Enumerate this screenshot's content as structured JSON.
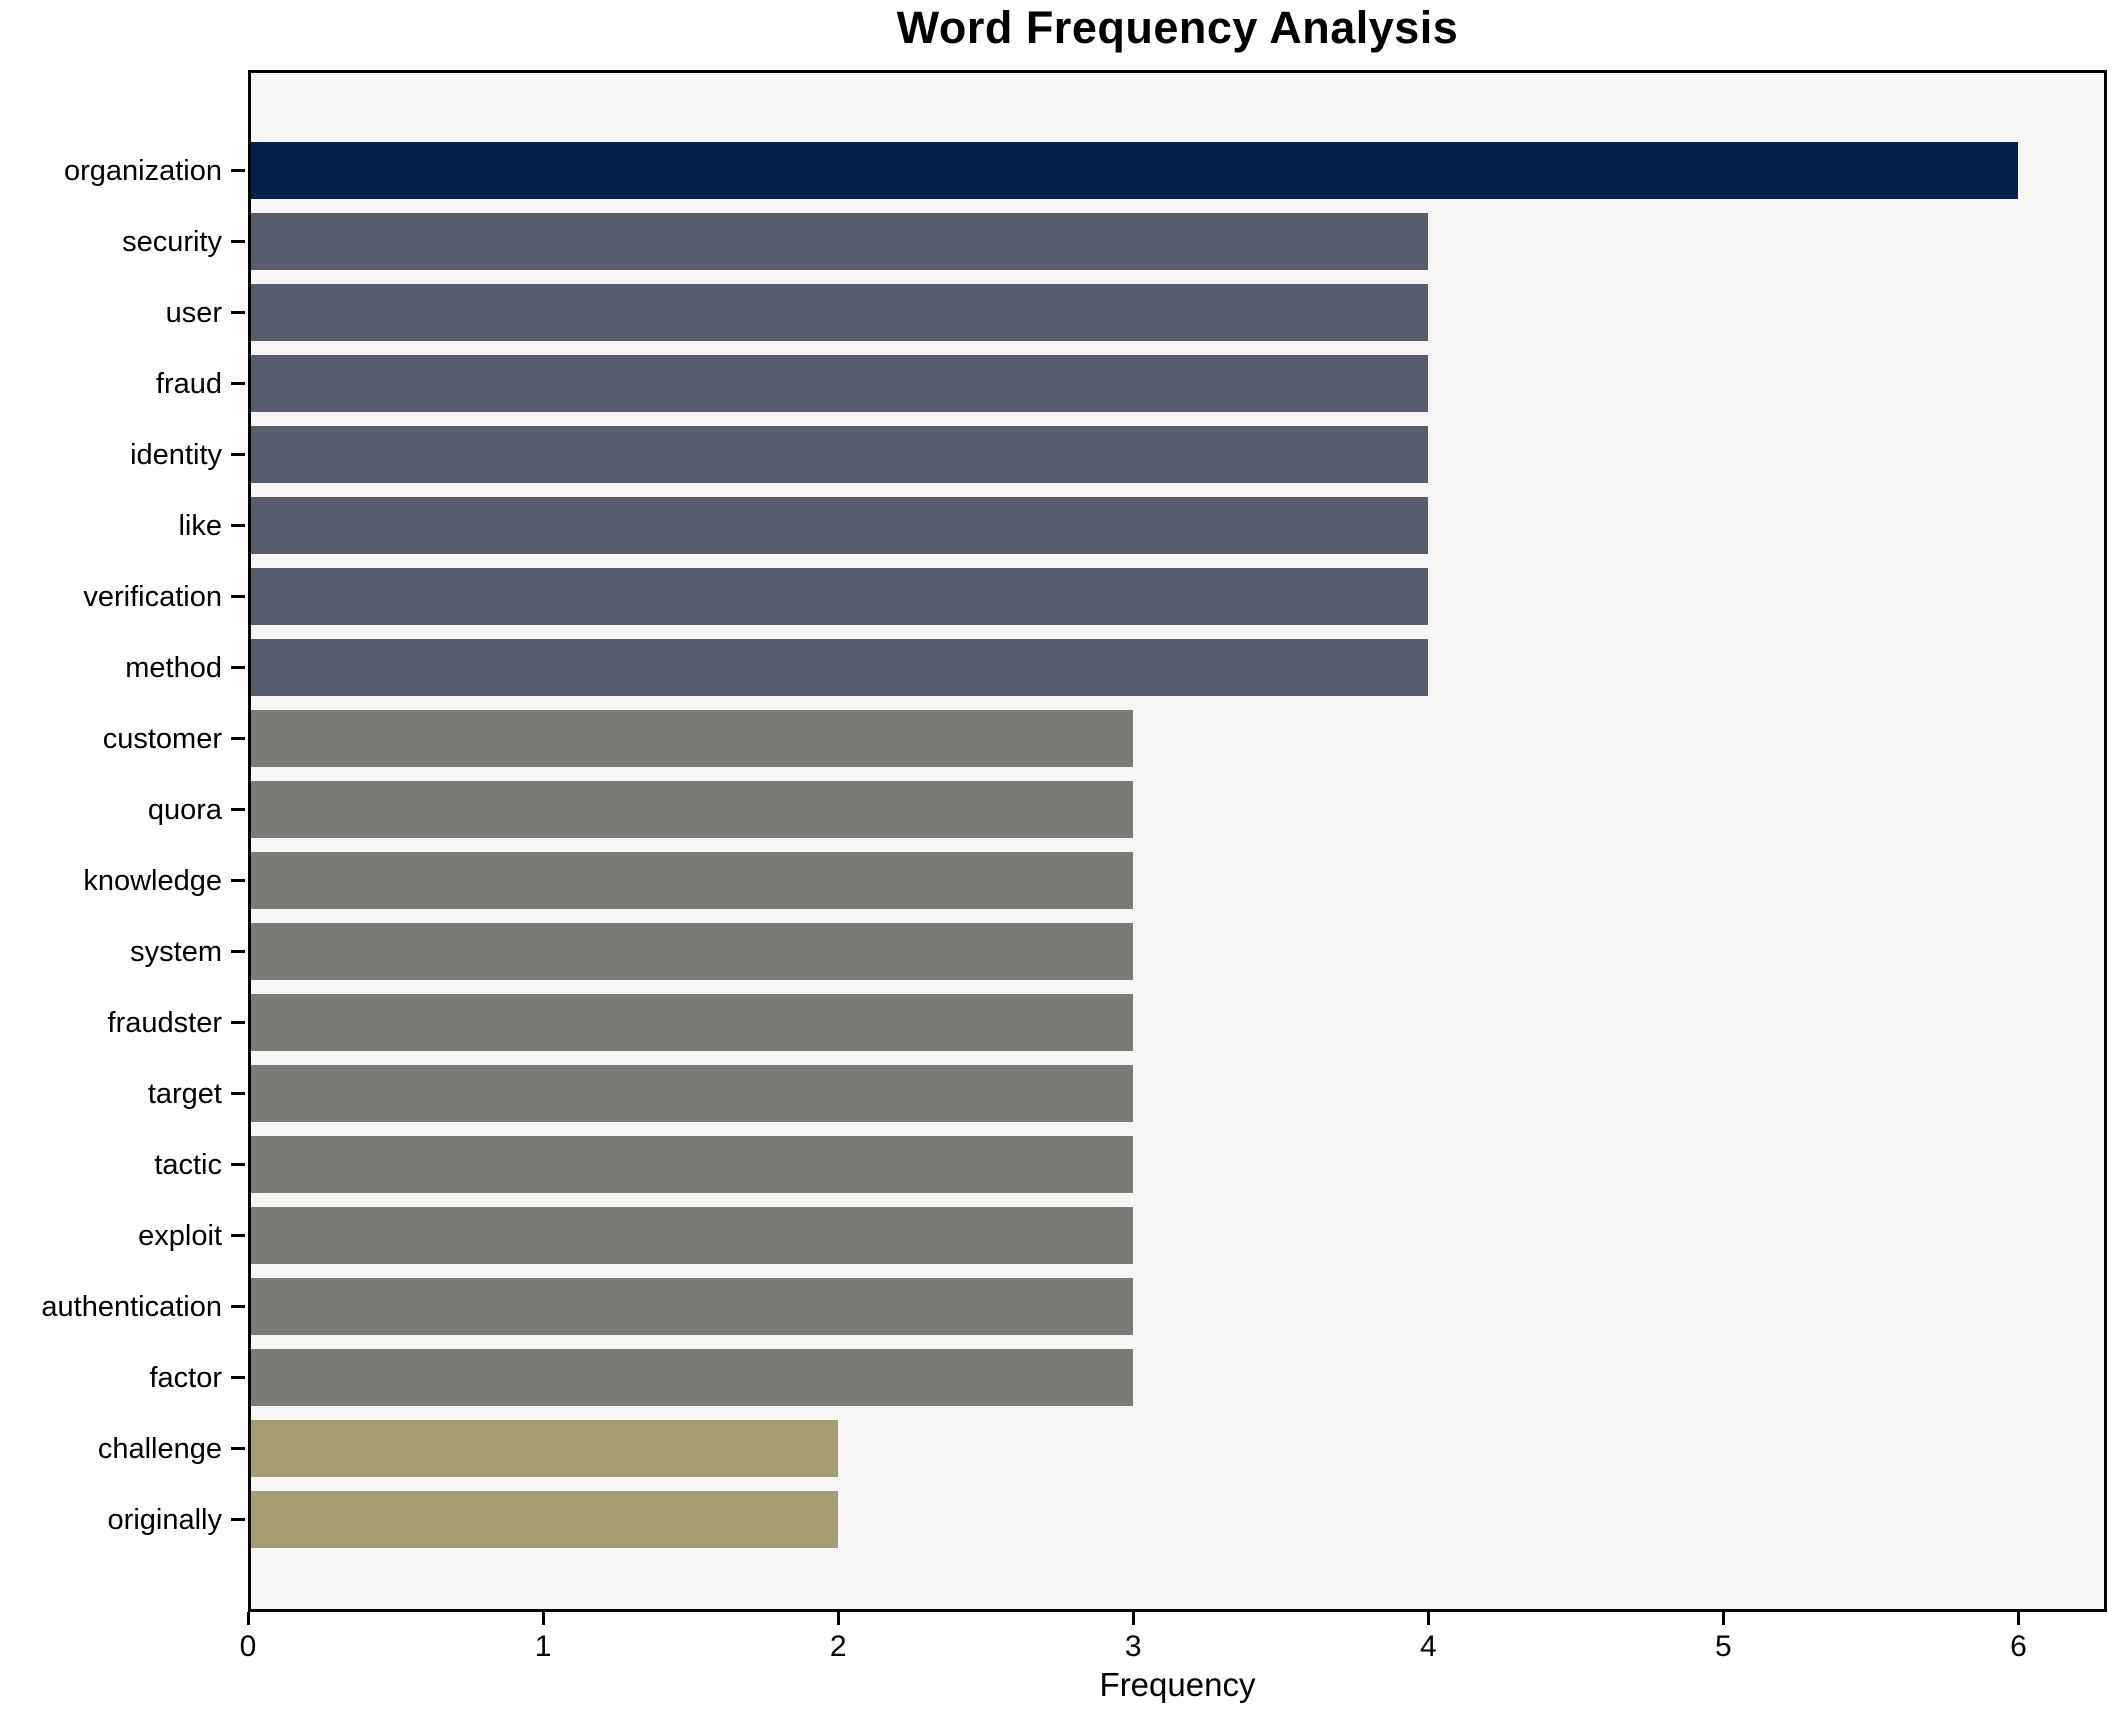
{
  "title": "Word Frequency Analysis",
  "chart_data": {
    "type": "bar",
    "orientation": "horizontal",
    "title": "Word Frequency Analysis",
    "xlabel": "Frequency",
    "ylabel": "",
    "categories": [
      "organization",
      "security",
      "user",
      "fraud",
      "identity",
      "like",
      "verification",
      "method",
      "customer",
      "quora",
      "knowledge",
      "system",
      "fraudster",
      "target",
      "tactic",
      "exploit",
      "authentication",
      "factor",
      "challenge",
      "originally"
    ],
    "values": [
      6,
      4,
      4,
      4,
      4,
      4,
      4,
      4,
      3,
      3,
      3,
      3,
      3,
      3,
      3,
      3,
      3,
      3,
      2,
      2
    ],
    "bar_colors": [
      "#03234e",
      "#565d6d",
      "#565d6d",
      "#565d6d",
      "#565d6d",
      "#565d6d",
      "#565d6d",
      "#565d6d",
      "#7b7a76",
      "#7b7a76",
      "#7b7a76",
      "#7b7a76",
      "#7b7a76",
      "#7b7a76",
      "#7b7a76",
      "#7b7a76",
      "#7b7a76",
      "#7b7a76",
      "#a69c72",
      "#a69c72"
    ],
    "xlim": [
      0,
      6.3
    ],
    "xticks": [
      "0",
      "1",
      "2",
      "3",
      "4",
      "5",
      "6"
    ],
    "grid": false,
    "legend": "none",
    "colors": {
      "value_6": "#03234e",
      "value_4": "#565d6d",
      "value_3": "#7b7a76",
      "value_2": "#a69c72",
      "plot_background": "#f7f6f4",
      "figure_background": "#ffffff",
      "axis": "#000000"
    }
  }
}
